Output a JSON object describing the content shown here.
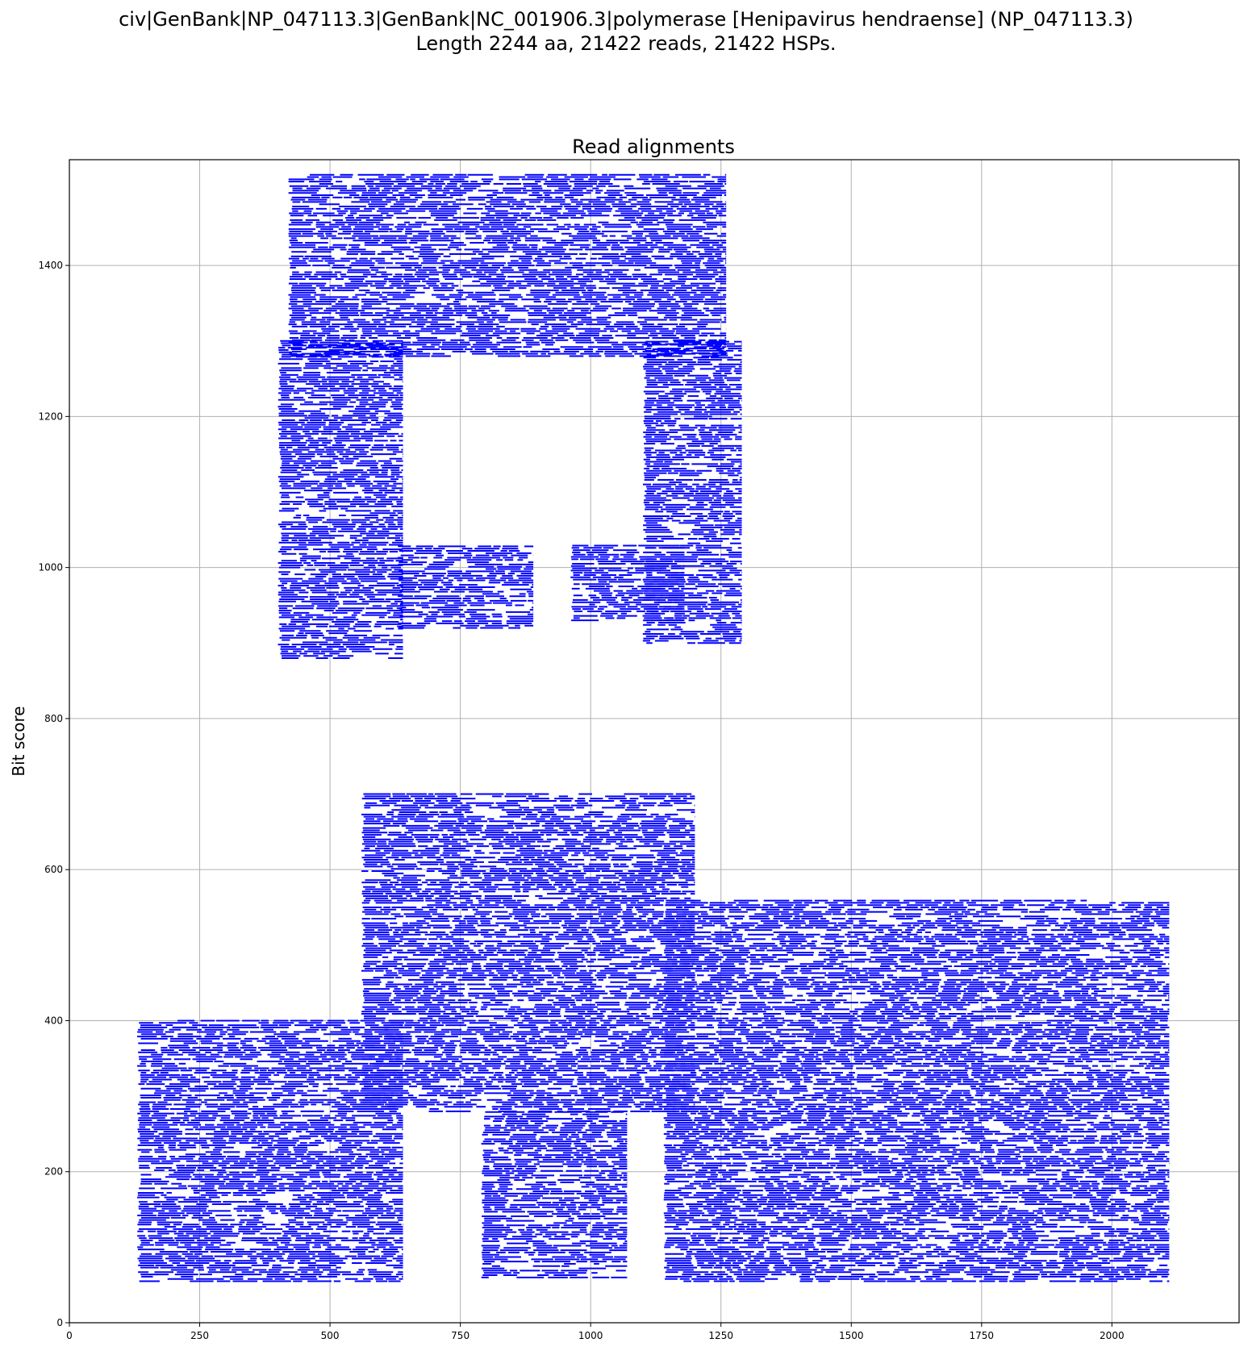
{
  "header": {
    "title_line1": "civ|GenBank|NP_047113.3|GenBank|NC_001906.3|polymerase [Henipavirus hendraense] (NP_047113.3)",
    "title_line2": "Length 2244 aa, 21422 reads, 21422 HSPs."
  },
  "chart_data": {
    "type": "scatter",
    "title": "Read alignments",
    "xlabel": "",
    "ylabel": "Bit score",
    "xlim": [
      0,
      2244
    ],
    "ylim": [
      0,
      1540
    ],
    "xticks": [
      0,
      250,
      500,
      750,
      1000,
      1250,
      1500,
      1750,
      2000
    ],
    "yticks": [
      0,
      200,
      400,
      600,
      800,
      1000,
      1200,
      1400
    ],
    "grid": true,
    "mark_color": "#0000ff",
    "read_count": 21422,
    "hsp_count": 21422,
    "reference_length_aa": 2244,
    "note_values": "Each mark is one read HSP drawn as a horizontal segment from subject start to subject end at its bit score. The dense read pile-up forms a portrait; regions below are approximate summaries of where the segments lie (data units).",
    "dense_regions": [
      {
        "name": "hair",
        "x_range": [
          420,
          1260
        ],
        "score_range": [
          1280,
          1520
        ]
      },
      {
        "name": "head-left",
        "x_range": [
          400,
          640
        ],
        "score_range": [
          880,
          1300
        ]
      },
      {
        "name": "head-right",
        "x_range": [
          1100,
          1290
        ],
        "score_range": [
          900,
          1300
        ]
      },
      {
        "name": "left-eyebrow-eye",
        "x_range": [
          630,
          890
        ],
        "score_range": [
          920,
          1030
        ]
      },
      {
        "name": "right-eyebrow-eye",
        "x_range": [
          960,
          1180
        ],
        "score_range": [
          930,
          1030
        ]
      },
      {
        "name": "beard-chin",
        "x_range": [
          560,
          1200
        ],
        "score_range": [
          280,
          700
        ]
      },
      {
        "name": "neck-tie",
        "x_range": [
          790,
          1070
        ],
        "score_range": [
          60,
          280
        ]
      },
      {
        "name": "left-shoulder",
        "x_range": [
          130,
          640
        ],
        "score_range": [
          55,
          400
        ]
      },
      {
        "name": "right-shoulder",
        "x_range": [
          1140,
          2110
        ],
        "score_range": [
          55,
          560
        ]
      }
    ]
  }
}
